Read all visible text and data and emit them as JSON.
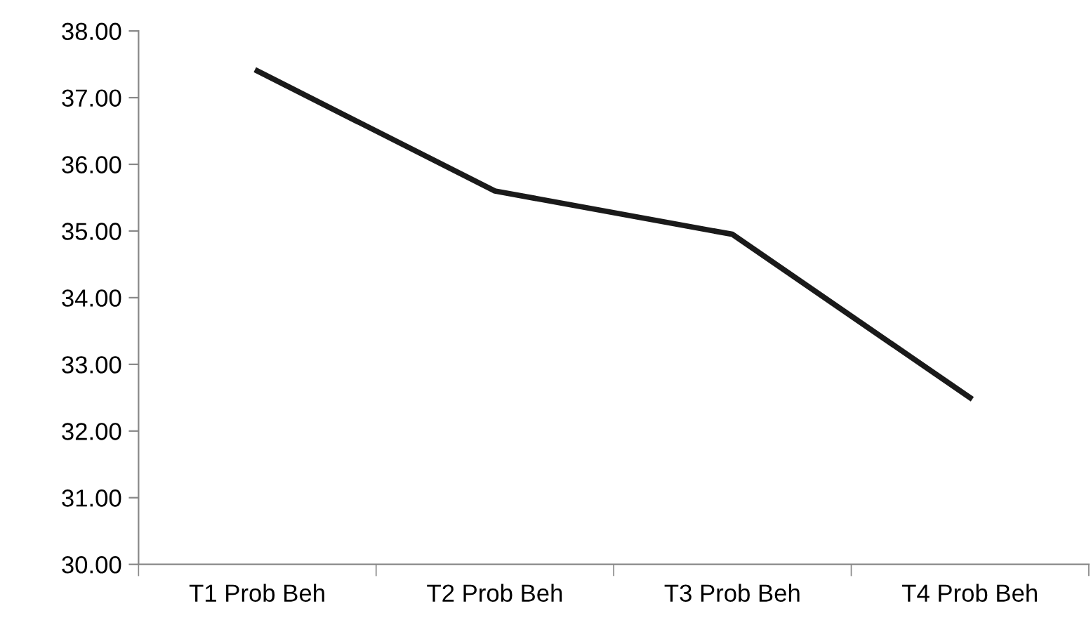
{
  "chart_data": {
    "type": "line",
    "categories": [
      "T1 Prob Beh",
      "T2 Prob Beh",
      "T3 Prob Beh",
      "T4 Prob Beh"
    ],
    "series": [
      {
        "color": "#1a1a1a",
        "values": [
          37.4,
          35.6,
          34.95,
          32.5
        ]
      }
    ],
    "ylim": [
      30,
      38
    ],
    "yticks": [
      {
        "value": 30,
        "label": "30.00"
      },
      {
        "value": 31,
        "label": "31.00"
      },
      {
        "value": 32,
        "label": "32.00"
      },
      {
        "value": 33,
        "label": "33.00"
      },
      {
        "value": 34,
        "label": "34.00"
      },
      {
        "value": 35,
        "label": "35.00"
      },
      {
        "value": 36,
        "label": "36.00"
      },
      {
        "value": 37,
        "label": "37.00"
      },
      {
        "value": 38,
        "label": "38.00"
      }
    ],
    "grid": false,
    "legend": false,
    "marker": "none",
    "line_style": "solid"
  }
}
